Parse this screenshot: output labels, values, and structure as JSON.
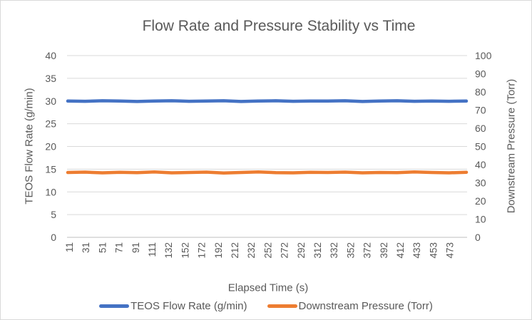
{
  "window": {
    "background": "#FFFFFF",
    "border_color": "#D9D9D9"
  },
  "chart_data": {
    "type": "line",
    "title": "Flow Rate and Pressure Stability vs Time",
    "xlabel": "Elapsed Time (s)",
    "grid": true,
    "legend_position": "bottom",
    "x_tick_labels": [
      "11",
      "31",
      "51",
      "71",
      "91",
      "111",
      "132",
      "152",
      "172",
      "192",
      "212",
      "232",
      "252",
      "272",
      "292",
      "312",
      "332",
      "352",
      "372",
      "392",
      "412",
      "433",
      "453",
      "473"
    ],
    "x": [
      11,
      31,
      51,
      71,
      91,
      111,
      132,
      152,
      172,
      192,
      212,
      232,
      252,
      272,
      292,
      312,
      332,
      352,
      372,
      392,
      412,
      433,
      453,
      473
    ],
    "left_axis": {
      "label": "TEOS Flow Rate (g/min)",
      "lim": [
        0,
        40
      ],
      "ticks": [
        0,
        5,
        10,
        15,
        20,
        25,
        30,
        35,
        40
      ]
    },
    "right_axis": {
      "label": "Downstream Pressure (Torr)",
      "lim": [
        0,
        100
      ],
      "ticks": [
        0,
        10,
        20,
        30,
        40,
        50,
        60,
        70,
        80,
        90,
        100
      ]
    },
    "series": [
      {
        "name": "TEOS Flow Rate (g/min)",
        "axis": "left",
        "color": "#4472C4",
        "values": [
          30.0,
          29.95,
          30.05,
          30.0,
          29.9,
          30.0,
          30.05,
          29.95,
          30.0,
          30.05,
          29.9,
          30.0,
          30.05,
          29.95,
          30.0,
          30.0,
          30.05,
          29.9,
          30.0,
          30.05,
          29.95,
          30.0,
          29.95,
          30.0
        ]
      },
      {
        "name": "Downstream Pressure (Torr)",
        "axis": "right",
        "color": "#ED7D31",
        "values": [
          35.7,
          35.9,
          35.5,
          35.8,
          35.6,
          36.0,
          35.5,
          35.7,
          35.9,
          35.4,
          35.7,
          36.0,
          35.6,
          35.5,
          35.8,
          35.7,
          35.9,
          35.5,
          35.7,
          35.6,
          36.0,
          35.7,
          35.5,
          35.8
        ]
      }
    ],
    "colors": {
      "gridline": "#D9D9D9",
      "axis_line": "#BFBFBF",
      "text": "#595959"
    }
  }
}
